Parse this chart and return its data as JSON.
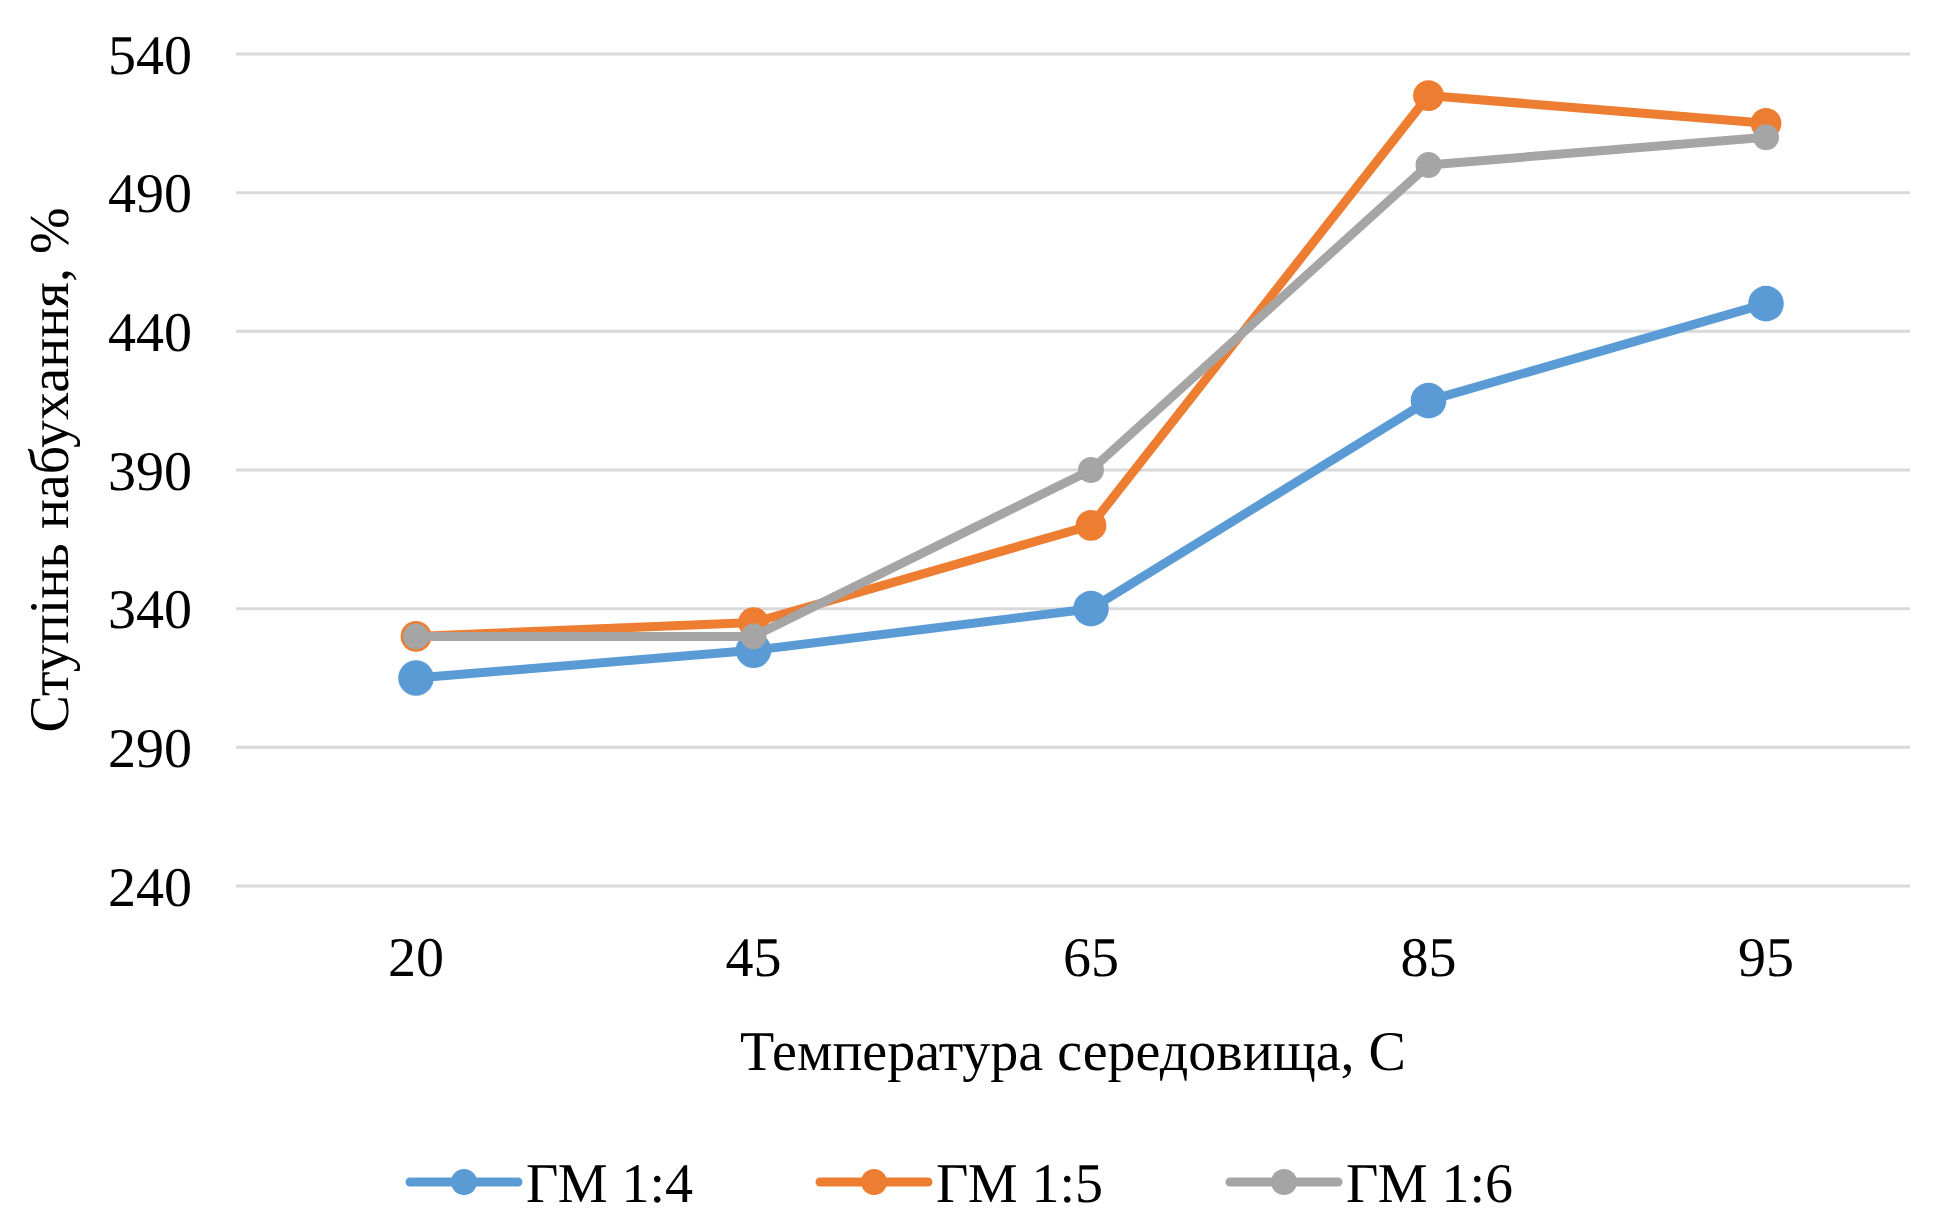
{
  "chart_data": {
    "type": "line",
    "xlabel": "Температура середовища,  С",
    "ylabel": "Ступінь набухання, %",
    "categories": [
      "20",
      "45",
      "65",
      "85",
      "95"
    ],
    "series": [
      {
        "name": "ГМ 1:4",
        "color": "#5b9bd5",
        "values": [
          315,
          325,
          340,
          415,
          450
        ]
      },
      {
        "name": "ГМ 1:5",
        "color": "#ed7d31",
        "values": [
          330,
          335,
          370,
          525,
          515
        ]
      },
      {
        "name": "ГМ 1:6",
        "color": "#a5a5a5",
        "values": [
          330,
          330,
          390,
          500,
          510
        ]
      }
    ],
    "ylim": [
      240,
      540
    ],
    "yticks": [
      240,
      290,
      340,
      390,
      440,
      490,
      540
    ],
    "grid": "y",
    "legend": "bottom",
    "marker": "circle",
    "line_style": "solid"
  }
}
